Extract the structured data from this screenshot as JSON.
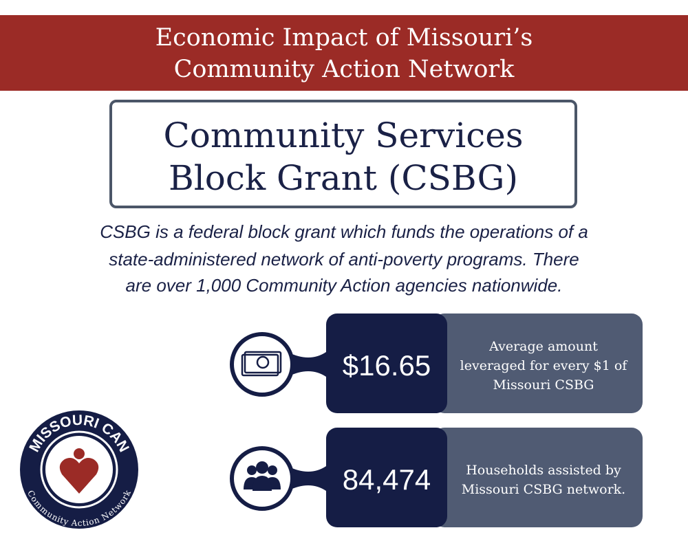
{
  "header": {
    "title_lines": [
      "Economic Impact of Missouri’s",
      "Community Action Network"
    ]
  },
  "program": {
    "title_lines": [
      "Community Services",
      "Block Grant (CSBG)"
    ],
    "description_lines": [
      "CSBG is a federal block grant which funds the operations of a",
      "state-administered network of anti-poverty programs. There",
      "are over 1,000 Community Action agencies nationwide."
    ]
  },
  "stats": [
    {
      "value": "$16.65",
      "label_lines": [
        "Average amount",
        "leveraged for every $1 of",
        "Missouri CSBG"
      ]
    },
    {
      "value": "84,474",
      "label_lines": [
        "Households assisted by",
        "Missouri CSBG network."
      ]
    }
  ],
  "logo": {
    "name": "MISSOURI CAN",
    "tagline": "Community Action Network"
  }
}
